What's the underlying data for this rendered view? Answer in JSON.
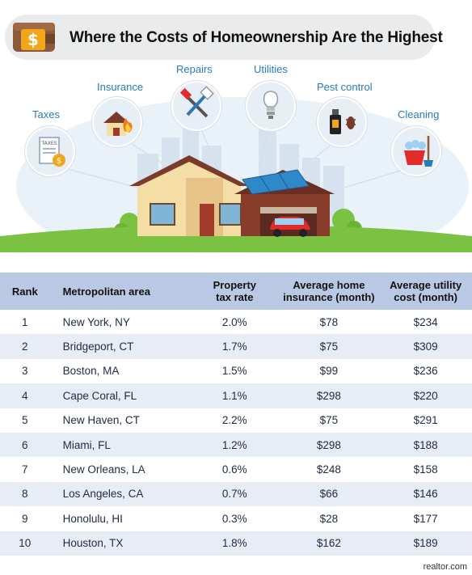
{
  "title": "Where the Costs of Homeownership Are the Highest",
  "categories": {
    "taxes": "Taxes",
    "insurance": "Insurance",
    "repairs": "Repairs",
    "utilities": "Utilities",
    "pest_control": "Pest control",
    "cleaning": "Cleaning"
  },
  "icons": {
    "wallet": "wallet-icon",
    "taxes": "tax-document-icon",
    "insurance": "house-fire-icon",
    "repairs": "tools-icon",
    "utilities": "light-bulb-icon",
    "pest_control": "bug-spray-icon",
    "cleaning": "cleaning-bucket-icon"
  },
  "taxes_doc_text": "TAXES",
  "table": {
    "headers": {
      "rank": "Rank",
      "metro": "Metropolitan area",
      "tax_line1": "Property",
      "tax_line2": "tax rate",
      "ins_line1": "Average home",
      "ins_line2": "insurance (month)",
      "util_line1": "Average utility",
      "util_line2": "cost (month)"
    },
    "rows": [
      {
        "rank": "1",
        "metro": "New York, NY",
        "tax": "2.0%",
        "insurance": "$78",
        "utility": "$234"
      },
      {
        "rank": "2",
        "metro": "Bridgeport, CT",
        "tax": "1.7%",
        "insurance": "$75",
        "utility": "$309"
      },
      {
        "rank": "3",
        "metro": "Boston, MA",
        "tax": "1.5%",
        "insurance": "$99",
        "utility": "$236"
      },
      {
        "rank": "4",
        "metro": "Cape Coral, FL",
        "tax": "1.1%",
        "insurance": "$298",
        "utility": "$220"
      },
      {
        "rank": "5",
        "metro": "New Haven, CT",
        "tax": "2.2%",
        "insurance": "$75",
        "utility": "$291"
      },
      {
        "rank": "6",
        "metro": "Miami, FL",
        "tax": "1.2%",
        "insurance": "$298",
        "utility": "$188"
      },
      {
        "rank": "7",
        "metro": "New Orleans, LA",
        "tax": "0.6%",
        "insurance": "$248",
        "utility": "$158"
      },
      {
        "rank": "8",
        "metro": "Los Angeles, CA",
        "tax": "0.7%",
        "insurance": "$66",
        "utility": "$146"
      },
      {
        "rank": "9",
        "metro": "Honolulu, HI",
        "tax": "0.3%",
        "insurance": "$28",
        "utility": "$177"
      },
      {
        "rank": "10",
        "metro": "Houston, TX",
        "tax": "1.8%",
        "insurance": "$162",
        "utility": "$189"
      }
    ]
  },
  "source": "realtor.com",
  "colors": {
    "header_bg": "#b9c9e3",
    "stripe_bg": "#e8edf5",
    "label_blue": "#2a7ab8",
    "grass": "#7cc242",
    "roof": "#7a3b2c"
  }
}
